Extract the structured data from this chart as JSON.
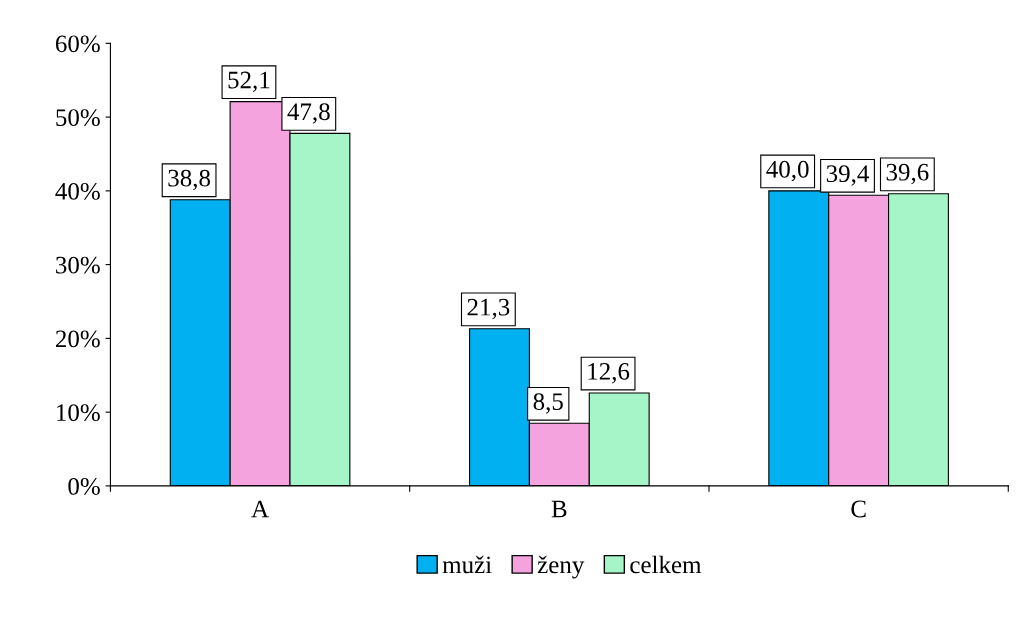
{
  "chart_data": {
    "type": "bar",
    "categories": [
      "A",
      "B",
      "C"
    ],
    "series": [
      {
        "name": "muži",
        "color": "#00b0f0",
        "values": [
          38.8,
          21.3,
          40.0
        ],
        "value_labels": [
          "38,8",
          "21,3",
          "40,0"
        ]
      },
      {
        "name": "ženy",
        "color": "#f5a3de",
        "values": [
          52.1,
          8.5,
          39.4
        ],
        "value_labels": [
          "52,1",
          "8,5",
          "39,4"
        ]
      },
      {
        "name": "celkem",
        "color": "#a6f5c8",
        "values": [
          47.8,
          12.6,
          39.6
        ],
        "value_labels": [
          "47,8",
          "12,6",
          "39,6"
        ]
      }
    ],
    "ylim": [
      0,
      60
    ],
    "yticks": [
      {
        "value": 0,
        "label": "0%"
      },
      {
        "value": 10,
        "label": "10%"
      },
      {
        "value": 20,
        "label": "20%"
      },
      {
        "value": 30,
        "label": "30%"
      },
      {
        "value": 40,
        "label": "40%"
      },
      {
        "value": 50,
        "label": "50%"
      },
      {
        "value": 60,
        "label": "60%"
      }
    ],
    "grid": false,
    "legend": "bottom"
  }
}
